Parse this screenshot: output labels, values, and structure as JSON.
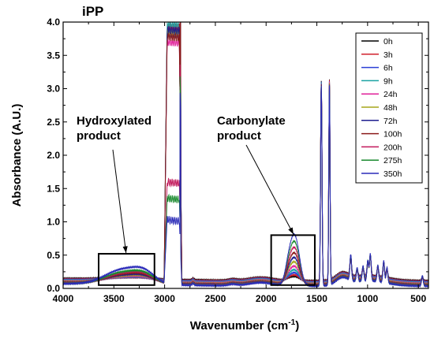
{
  "chart_data": {
    "type": "line",
    "title": "iPP",
    "xlabel": "Wavenumber (cm",
    "xlabel_sup": "-1",
    "xlabel_end": ")",
    "ylabel": "Absorbance (A.U.)",
    "xlim": [
      4000,
      400
    ],
    "x_reversed": true,
    "ylim": [
      0.0,
      4.0
    ],
    "x_ticks": [
      4000,
      3500,
      3000,
      2500,
      2000,
      1500,
      1000,
      500
    ],
    "y_ticks": [
      "0.0",
      "0.5",
      "1.0",
      "1.5",
      "2.0",
      "2.5",
      "3.0",
      "3.5",
      "4.0"
    ],
    "grid": false,
    "legend_position": "top-right",
    "series": [
      {
        "name": "0h",
        "color": "#000000",
        "carbonyl": 0.06,
        "hydroxyl": 0.04,
        "baseline": 0.115,
        "ch_plateau": 3.75
      },
      {
        "name": "3h",
        "color": "#d11f2b",
        "carbonyl": 0.09,
        "hydroxyl": 0.05,
        "baseline": 0.105,
        "ch_plateau": 3.8
      },
      {
        "name": "6h",
        "color": "#2b3fd6",
        "carbonyl": 0.13,
        "hydroxyl": 0.07,
        "baseline": 0.095,
        "ch_plateau": 3.7
      },
      {
        "name": "9h",
        "color": "#1aa3a3",
        "carbonyl": 0.18,
        "hydroxyl": 0.09,
        "baseline": 0.085,
        "ch_plateau": 3.85
      },
      {
        "name": "24h",
        "color": "#e0209a",
        "carbonyl": 0.24,
        "hydroxyl": 0.11,
        "baseline": 0.075,
        "ch_plateau": 3.6
      },
      {
        "name": "48h",
        "color": "#a6a61a",
        "carbonyl": 0.31,
        "hydroxyl": 0.14,
        "baseline": 0.065,
        "ch_plateau": 3.75
      },
      {
        "name": "72h",
        "color": "#1d1d8f",
        "carbonyl": 0.38,
        "hydroxyl": 0.17,
        "baseline": 0.055,
        "ch_plateau": 3.8
      },
      {
        "name": "100h",
        "color": "#8b1a1a",
        "carbonyl": 0.45,
        "hydroxyl": 0.2,
        "baseline": 0.05,
        "ch_plateau": 3.7
      },
      {
        "name": "200h",
        "color": "#c2185b",
        "carbonyl": 0.53,
        "hydroxyl": 0.23,
        "baseline": 0.045,
        "ch_plateau": 1.52
      },
      {
        "name": "275h",
        "color": "#1a8a2e",
        "carbonyl": 0.62,
        "hydroxyl": 0.26,
        "baseline": 0.04,
        "ch_plateau": 1.28
      },
      {
        "name": "350h",
        "color": "#2a2ab8",
        "carbonyl": 0.72,
        "hydroxyl": 0.33,
        "baseline": 0.035,
        "ch_plateau": 0.96
      }
    ],
    "annotations": [
      {
        "lines": [
          "Hydroxylated",
          "product"
        ],
        "box_x": [
          3650,
          3100
        ],
        "box_y": [
          0.05,
          0.52
        ],
        "points_to": [
          3380,
          0.52
        ]
      },
      {
        "lines": [
          "Carbonylate",
          "product"
        ],
        "box_x": [
          1950,
          1520
        ],
        "box_y": [
          0.05,
          0.8
        ],
        "points_to": [
          1730,
          0.8
        ]
      }
    ]
  }
}
